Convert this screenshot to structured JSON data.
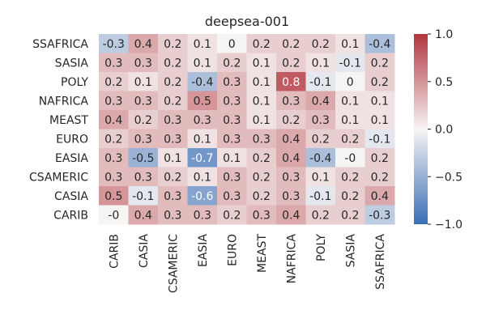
{
  "chart_data": {
    "type": "heatmap",
    "title": "deepsea-001",
    "x_categories": [
      "CARIB",
      "CASIA",
      "CSAMERIC",
      "EASIA",
      "EURO",
      "MEAST",
      "NAFRICA",
      "POLY",
      "SASIA",
      "SSAFRICA"
    ],
    "y_categories": [
      "SSAFRICA",
      "SASIA",
      "POLY",
      "NAFRICA",
      "MEAST",
      "EURO",
      "EASIA",
      "CSAMERIC",
      "CASIA",
      "CARIB"
    ],
    "values": [
      [
        -0.3,
        0.4,
        0.2,
        0.1,
        0.0,
        0.2,
        0.2,
        0.2,
        0.1,
        -0.4
      ],
      [
        0.3,
        0.3,
        0.2,
        0.1,
        0.2,
        0.1,
        0.2,
        0.1,
        -0.1,
        0.2
      ],
      [
        0.2,
        0.1,
        0.2,
        -0.4,
        0.3,
        0.1,
        0.8,
        -0.1,
        0.0,
        0.2
      ],
      [
        0.3,
        0.3,
        0.2,
        0.5,
        0.3,
        0.1,
        0.3,
        0.4,
        0.1,
        0.1
      ],
      [
        0.4,
        0.2,
        0.3,
        0.3,
        0.3,
        0.1,
        0.2,
        0.3,
        0.1,
        0.1
      ],
      [
        0.2,
        0.3,
        0.3,
        0.1,
        0.3,
        0.3,
        0.4,
        0.2,
        0.2,
        -0.1
      ],
      [
        0.3,
        -0.5,
        0.1,
        -0.7,
        0.1,
        0.2,
        0.4,
        -0.4,
        0.0,
        0.2
      ],
      [
        0.3,
        0.3,
        0.2,
        0.1,
        0.3,
        0.2,
        0.3,
        0.1,
        0.2,
        0.2
      ],
      [
        0.5,
        -0.1,
        0.3,
        -0.6,
        0.3,
        0.2,
        0.3,
        -0.1,
        0.2,
        0.4
      ],
      [
        0.0,
        0.4,
        0.3,
        0.3,
        0.2,
        0.3,
        0.4,
        0.2,
        0.2,
        -0.3
      ]
    ],
    "annotations": [
      [
        "-0.3",
        "0.4",
        "0.2",
        "0.1",
        "0",
        "0.2",
        "0.2",
        "0.2",
        "0.1",
        "-0.4"
      ],
      [
        "0.3",
        "0.3",
        "0.2",
        "0.1",
        "0.2",
        "0.1",
        "0.2",
        "0.1",
        "-0.1",
        "0.2"
      ],
      [
        "0.2",
        "0.1",
        "0.2",
        "-0.4",
        "0.3",
        "0.1",
        "0.8",
        "-0.1",
        "0",
        "0.2"
      ],
      [
        "0.3",
        "0.3",
        "0.2",
        "0.5",
        "0.3",
        "0.1",
        "0.3",
        "0.4",
        "0.1",
        "0.1"
      ],
      [
        "0.4",
        "0.2",
        "0.3",
        "0.3",
        "0.3",
        "0.1",
        "0.2",
        "0.3",
        "0.1",
        "0.1"
      ],
      [
        "0.2",
        "0.3",
        "0.3",
        "0.1",
        "0.3",
        "0.3",
        "0.4",
        "0.2",
        "0.2",
        "-0.1"
      ],
      [
        "0.3",
        "-0.5",
        "0.1",
        "-0.7",
        "0.1",
        "0.2",
        "0.4",
        "-0.4",
        "-0",
        "0.2"
      ],
      [
        "0.3",
        "0.3",
        "0.2",
        "0.1",
        "0.3",
        "0.2",
        "0.3",
        "0.1",
        "0.2",
        "0.2"
      ],
      [
        "0.5",
        "-0.1",
        "0.3",
        "-0.6",
        "0.3",
        "0.2",
        "0.3",
        "-0.1",
        "0.2",
        "0.4"
      ],
      [
        "-0",
        "0.4",
        "0.3",
        "0.3",
        "0.2",
        "0.3",
        "0.4",
        "0.2",
        "0.2",
        "-0.3"
      ]
    ],
    "vmin": -1.0,
    "vmax": 1.0,
    "colormap": "vlag",
    "colorbar": {
      "ticks": [
        1.0,
        0.5,
        0.0,
        -0.5,
        -1.0
      ],
      "tick_labels": [
        "1.0",
        "0.5",
        "0.0",
        "−0.5",
        "−1.0"
      ],
      "position": "right"
    },
    "colors": {
      "low": "#3a6fb5",
      "mid": "#f7f4f4",
      "high": "#b2353e",
      "text": "#262626"
    }
  }
}
